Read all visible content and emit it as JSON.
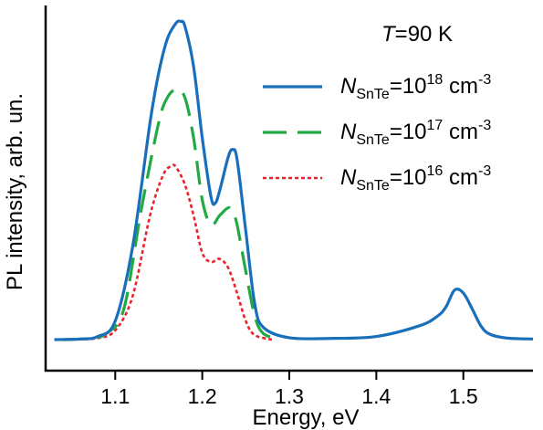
{
  "chart_data": {
    "type": "line",
    "xlabel": "Energy, eV",
    "ylabel": "PL intensity, arb. un.",
    "xlim": [
      1.02,
      1.58
    ],
    "ylim": [
      0,
      1.0
    ],
    "xticks": [
      1.1,
      1.2,
      1.3,
      1.4,
      1.5
    ],
    "xtick_labels": [
      "1.1",
      "1.2",
      "1.3",
      "1.4",
      "1.5"
    ],
    "yticks_shown": false,
    "grid": false,
    "legend_position": "top-right",
    "annotation": {
      "italic": "T",
      "text": "=90 K"
    },
    "series": [
      {
        "legend": {
          "symbol": "N",
          "sub": "SnTe",
          "mid": "=10",
          "sup": "18",
          "unit": " cm",
          "unit_sup": "-3"
        },
        "color": "#1a6fbb",
        "dash": "solid",
        "x": [
          1.03,
          1.06,
          1.08,
          1.1,
          1.12,
          1.14,
          1.15,
          1.16,
          1.17,
          1.175,
          1.18,
          1.19,
          1.2,
          1.21,
          1.215,
          1.22,
          1.23,
          1.235,
          1.24,
          1.25,
          1.26,
          1.27,
          1.3,
          1.35,
          1.4,
          1.45,
          1.47,
          1.48,
          1.49,
          1.5,
          1.51,
          1.52,
          1.53,
          1.55,
          1.58
        ],
        "y": [
          0.0,
          0.002,
          0.01,
          0.06,
          0.3,
          0.7,
          0.86,
          0.97,
          1.02,
          1.025,
          1.01,
          0.88,
          0.65,
          0.46,
          0.44,
          0.48,
          0.59,
          0.612,
          0.58,
          0.35,
          0.12,
          0.04,
          0.006,
          0.004,
          0.01,
          0.045,
          0.075,
          0.105,
          0.16,
          0.15,
          0.1,
          0.045,
          0.018,
          0.005,
          0.002
        ]
      },
      {
        "legend": {
          "symbol": "N",
          "sub": "SnTe",
          "mid": "=10",
          "sup": "17",
          "unit": " cm",
          "unit_sup": "-3"
        },
        "color": "#22aa44",
        "dash": "dashed",
        "x": [
          1.04,
          1.07,
          1.09,
          1.11,
          1.13,
          1.15,
          1.16,
          1.17,
          1.18,
          1.19,
          1.2,
          1.21,
          1.22,
          1.23,
          1.235,
          1.24,
          1.25,
          1.26,
          1.27,
          1.29
        ],
        "y": [
          0.0,
          0.004,
          0.02,
          0.1,
          0.42,
          0.7,
          0.78,
          0.805,
          0.78,
          0.65,
          0.45,
          0.37,
          0.4,
          0.425,
          0.41,
          0.37,
          0.22,
          0.08,
          0.02,
          0.0
        ]
      },
      {
        "legend": {
          "symbol": "N",
          "sub": "SnTe",
          "mid": "=10",
          "sup": "16",
          "unit": " cm",
          "unit_sup": "-3"
        },
        "color": "#e8242c",
        "dash": "dotted",
        "x": [
          1.05,
          1.08,
          1.1,
          1.12,
          1.14,
          1.155,
          1.165,
          1.17,
          1.18,
          1.19,
          1.2,
          1.21,
          1.22,
          1.23,
          1.24,
          1.25,
          1.26,
          1.28
        ],
        "y": [
          0.0,
          0.005,
          0.03,
          0.14,
          0.4,
          0.53,
          0.56,
          0.555,
          0.5,
          0.4,
          0.28,
          0.25,
          0.26,
          0.23,
          0.15,
          0.06,
          0.015,
          0.0
        ]
      }
    ]
  }
}
